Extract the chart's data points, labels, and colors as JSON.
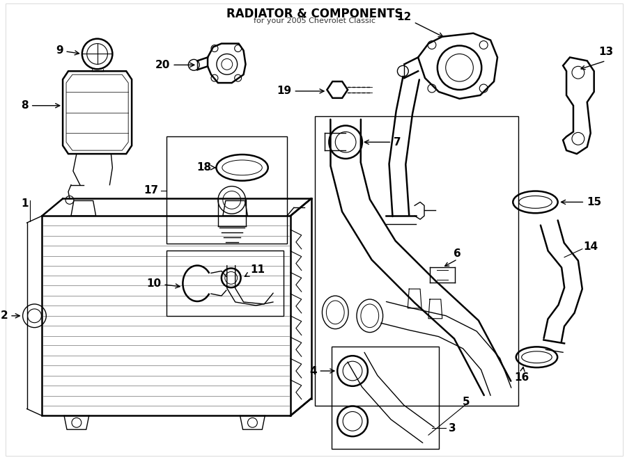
{
  "title": "RADIATOR & COMPONENTS",
  "subtitle": "for your 2005 Chevrolet Classic",
  "bg_color": "#ffffff",
  "line_color": "#000000",
  "title_fontsize": 11,
  "label_fontsize": 11,
  "fig_width": 9.0,
  "fig_height": 6.61,
  "dpi": 100
}
